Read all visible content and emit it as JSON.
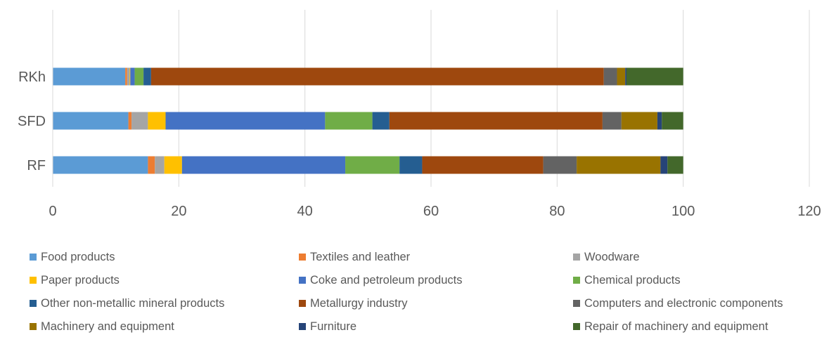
{
  "chart_data": {
    "type": "bar",
    "orientation": "horizontal",
    "stacked": true,
    "categories": [
      "RKh",
      "SFD",
      "RF"
    ],
    "xlim": [
      0,
      120
    ],
    "xticks": [
      0,
      20,
      40,
      60,
      80,
      100,
      120
    ],
    "grid": true,
    "legend_position": "bottom",
    "series": [
      {
        "name": "Food products",
        "color": "#5B9BD5",
        "values": [
          11.5,
          12.0,
          15.1
        ]
      },
      {
        "name": "Textiles and leather",
        "color": "#ED7D31",
        "values": [
          0.3,
          0.5,
          1.1
        ]
      },
      {
        "name": "Woodware",
        "color": "#A5A5A5",
        "values": [
          0.4,
          2.6,
          1.5
        ]
      },
      {
        "name": "Paper products",
        "color": "#FFC000",
        "values": [
          0.1,
          2.8,
          2.8
        ]
      },
      {
        "name": "Coke and petroleum products",
        "color": "#4472C4",
        "values": [
          0.7,
          25.3,
          25.9
        ]
      },
      {
        "name": "Chemical products",
        "color": "#70AD47",
        "values": [
          1.4,
          7.5,
          8.6
        ]
      },
      {
        "name": "Other non-metallic mineral products",
        "color": "#255E91",
        "values": [
          1.2,
          2.7,
          3.6
        ]
      },
      {
        "name": "Metallurgy industry",
        "color": "#9E480E",
        "values": [
          71.8,
          33.8,
          19.2
        ]
      },
      {
        "name": "Computers and electronic components",
        "color": "#636363",
        "values": [
          2.1,
          3.0,
          5.3
        ]
      },
      {
        "name": "Machinery and equipment",
        "color": "#997300",
        "values": [
          1.3,
          5.7,
          13.3
        ]
      },
      {
        "name": "Furniture",
        "color": "#264478",
        "values": [
          0.2,
          0.7,
          1.1
        ]
      },
      {
        "name": "Repair of machinery and equipment",
        "color": "#43682B",
        "values": [
          9.0,
          3.4,
          2.5
        ]
      }
    ]
  }
}
